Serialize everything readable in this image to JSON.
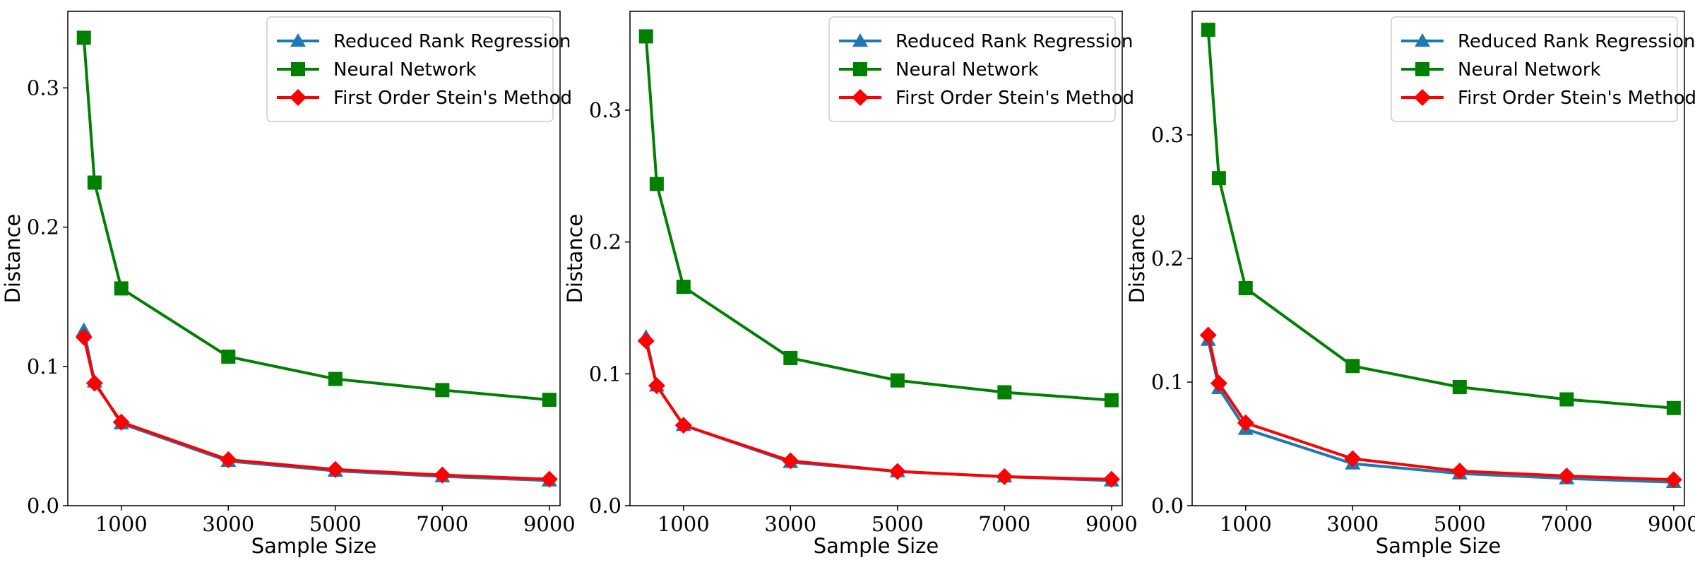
{
  "chart_data": [
    {
      "type": "line",
      "xlabel": "Sample Size",
      "ylabel": "Distance",
      "xlim": [
        0,
        9200
      ],
      "ylim": [
        0,
        0.355
      ],
      "xticks": [
        1000,
        3000,
        5000,
        7000,
        9000
      ],
      "yticks": [
        0.0,
        0.1,
        0.2,
        0.3
      ],
      "x": [
        300,
        500,
        1000,
        3000,
        5000,
        7000,
        9000
      ],
      "legend": "top-right",
      "grid": false,
      "series": [
        {
          "name": "Reduced Rank Regression",
          "color": "#1f77b4",
          "marker": "triangle",
          "values": [
            0.126,
            0.089,
            0.059,
            0.032,
            0.025,
            0.021,
            0.018
          ]
        },
        {
          "name": "Neural Network",
          "color": "#008000",
          "marker": "square",
          "values": [
            0.336,
            0.232,
            0.156,
            0.107,
            0.091,
            0.083,
            0.076
          ]
        },
        {
          "name": "First Order Stein's Method",
          "color": "#ff0000",
          "marker": "diamond",
          "values": [
            0.121,
            0.088,
            0.06,
            0.033,
            0.026,
            0.022,
            0.019
          ]
        }
      ]
    },
    {
      "type": "line",
      "xlabel": "Sample Size",
      "ylabel": "Distance",
      "xlim": [
        0,
        9200
      ],
      "ylim": [
        0,
        0.375
      ],
      "xticks": [
        1000,
        3000,
        5000,
        7000,
        9000
      ],
      "yticks": [
        0.0,
        0.1,
        0.2,
        0.3
      ],
      "x": [
        300,
        500,
        1000,
        3000,
        5000,
        7000,
        9000
      ],
      "legend": "top-right",
      "grid": false,
      "series": [
        {
          "name": "Reduced Rank Regression",
          "color": "#1f77b4",
          "marker": "triangle",
          "values": [
            0.128,
            0.091,
            0.061,
            0.033,
            0.026,
            0.022,
            0.019
          ]
        },
        {
          "name": "Neural Network",
          "color": "#008000",
          "marker": "square",
          "values": [
            0.356,
            0.244,
            0.166,
            0.112,
            0.095,
            0.086,
            0.08
          ]
        },
        {
          "name": "First Order Stein's Method",
          "color": "#ff0000",
          "marker": "diamond",
          "values": [
            0.125,
            0.091,
            0.061,
            0.034,
            0.026,
            0.022,
            0.02
          ]
        }
      ]
    },
    {
      "type": "line",
      "xlabel": "Sample Size",
      "ylabel": "Distance",
      "xlim": [
        0,
        9200
      ],
      "ylim": [
        0,
        0.4
      ],
      "xticks": [
        1000,
        3000,
        5000,
        7000,
        9000
      ],
      "yticks": [
        0.0,
        0.1,
        0.2,
        0.3
      ],
      "x": [
        300,
        500,
        1000,
        3000,
        5000,
        7000,
        9000
      ],
      "legend": "top-right",
      "grid": false,
      "series": [
        {
          "name": "Reduced Rank Regression",
          "color": "#1f77b4",
          "marker": "triangle",
          "values": [
            0.134,
            0.095,
            0.062,
            0.034,
            0.026,
            0.022,
            0.019
          ]
        },
        {
          "name": "Neural Network",
          "color": "#008000",
          "marker": "square",
          "values": [
            0.385,
            0.265,
            0.176,
            0.113,
            0.096,
            0.086,
            0.079
          ]
        },
        {
          "name": "First Order Stein's Method",
          "color": "#ff0000",
          "marker": "diamond",
          "values": [
            0.138,
            0.099,
            0.067,
            0.038,
            0.028,
            0.024,
            0.021
          ]
        }
      ]
    }
  ]
}
